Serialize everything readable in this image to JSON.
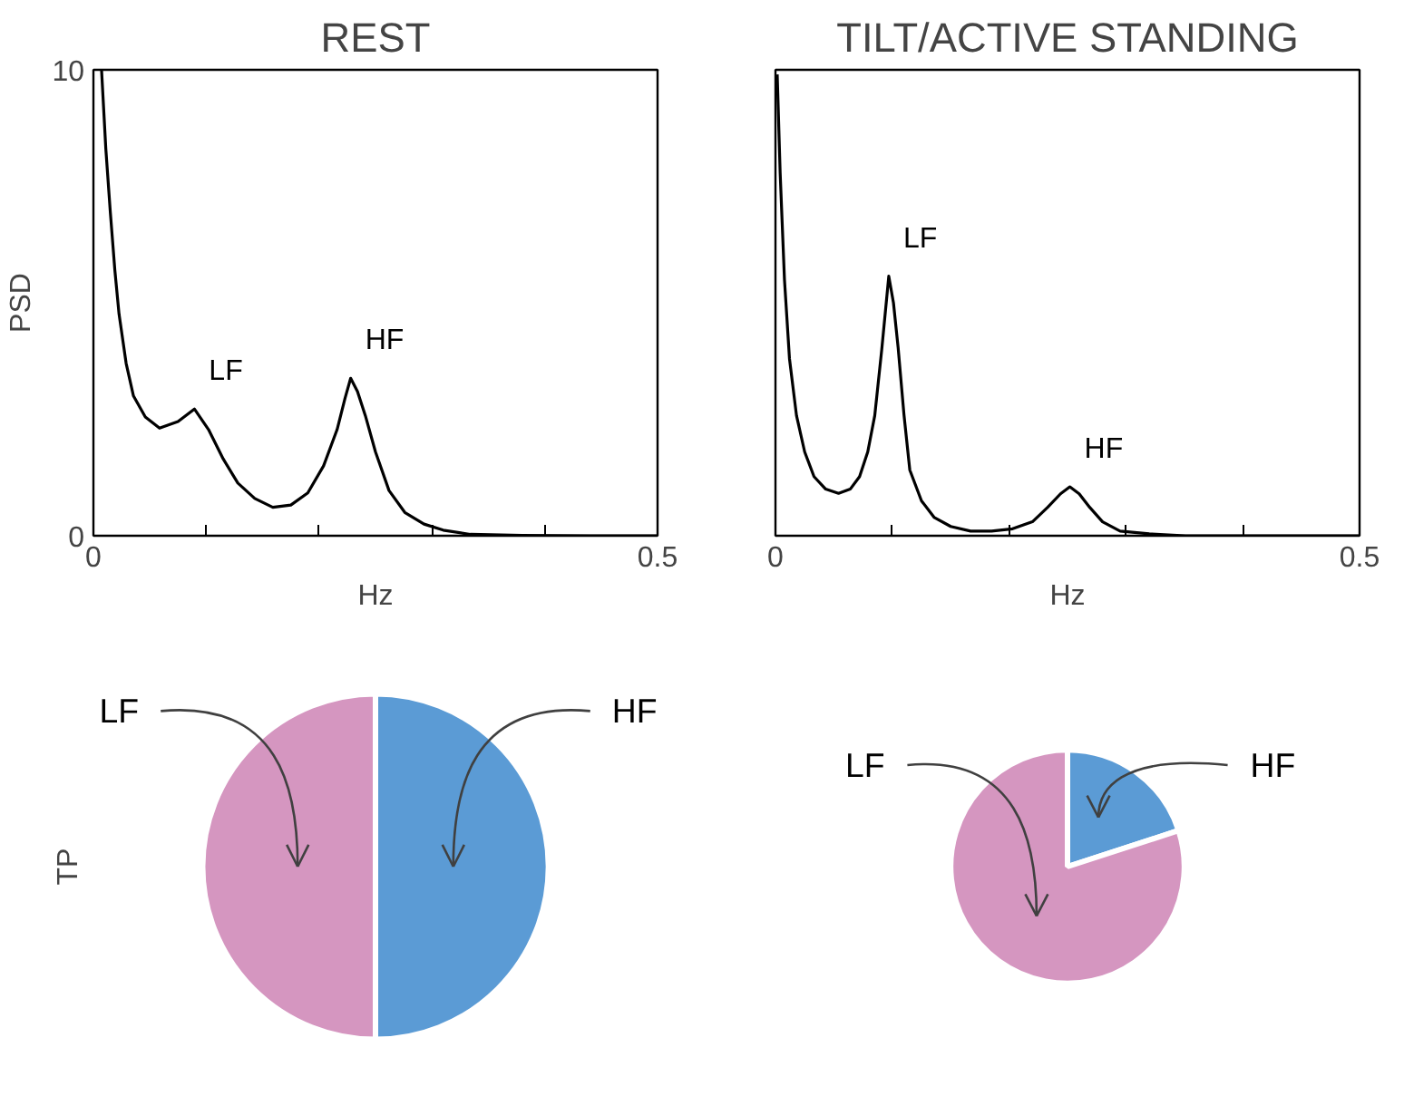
{
  "chart_data": [
    {
      "type": "line",
      "title": "REST",
      "xlabel": "Hz",
      "ylabel": "PSD",
      "xlim": [
        0,
        0.5
      ],
      "ylim": [
        0,
        10
      ],
      "xticks": [
        0,
        {
          "value": 0.1,
          "label": null
        },
        {
          "value": 0.2,
          "label": null
        },
        {
          "value": 0.3,
          "label": null
        },
        {
          "value": 0.4,
          "label": null
        },
        0.5
      ],
      "yticks": [
        0,
        10
      ],
      "grid": false,
      "series": [
        {
          "color": "#000000",
          "x": [
            0.0072,
            0.011,
            0.015,
            0.019,
            0.0227,
            0.029,
            0.0355,
            0.046,
            0.0586,
            0.075,
            0.0895,
            0.102,
            0.115,
            0.128,
            0.143,
            0.159,
            0.175,
            0.19,
            0.204,
            0.216,
            0.223,
            0.228,
            0.234,
            0.241,
            0.25,
            0.262,
            0.276,
            0.293,
            0.31,
            0.334,
            0.38,
            0.44,
            0.5
          ],
          "values": [
            10,
            8.3,
            6.94,
            5.7,
            4.76,
            3.7,
            3.0,
            2.55,
            2.31,
            2.45,
            2.72,
            2.28,
            1.65,
            1.13,
            0.8,
            0.61,
            0.66,
            0.92,
            1.5,
            2.28,
            2.95,
            3.38,
            3.1,
            2.58,
            1.8,
            0.97,
            0.5,
            0.25,
            0.12,
            0.03,
            0.01,
            0,
            0
          ]
        }
      ],
      "annotations": [
        {
          "text": "LF",
          "x": 0.0895,
          "y": 2.72
        },
        {
          "text": "HF",
          "x": 0.228,
          "y": 3.38
        }
      ]
    },
    {
      "type": "line",
      "title": "TILT/ACTIVE STANDING",
      "xlabel": "Hz",
      "xlim": [
        0,
        0.5
      ],
      "ylim": [
        0,
        10
      ],
      "xticks": [
        0,
        {
          "value": 0.1,
          "label": null
        },
        {
          "value": 0.2,
          "label": null
        },
        {
          "value": 0.3,
          "label": null
        },
        {
          "value": 0.4,
          "label": null
        },
        0.5
      ],
      "yticks": [
        0,
        10
      ],
      "tick_labels": "x",
      "grid": false,
      "series": [
        {
          "color": "#000000",
          "x": [
            0.0015,
            0.004,
            0.0077,
            0.012,
            0.018,
            0.025,
            0.033,
            0.043,
            0.054,
            0.064,
            0.072,
            0.079,
            0.085,
            0.091,
            0.097,
            0.101,
            0.105,
            0.11,
            0.115,
            0.125,
            0.136,
            0.15,
            0.167,
            0.185,
            0.203,
            0.22,
            0.233,
            0.244,
            0.252,
            0.26,
            0.269,
            0.28,
            0.295,
            0.32,
            0.351,
            0.42,
            0.5
          ],
          "values": [
            9.9,
            7.8,
            5.5,
            3.8,
            2.58,
            1.8,
            1.27,
            1.0,
            0.91,
            1.0,
            1.27,
            1.8,
            2.58,
            4.0,
            5.57,
            5.0,
            4.04,
            2.6,
            1.41,
            0.75,
            0.39,
            0.2,
            0.1,
            0.1,
            0.15,
            0.3,
            0.61,
            0.9,
            1.05,
            0.9,
            0.61,
            0.3,
            0.1,
            0.04,
            0,
            0,
            0
          ]
        }
      ],
      "annotations": [
        {
          "text": "LF",
          "x": 0.097,
          "y": 5.57
        },
        {
          "text": "HF",
          "x": 0.252,
          "y": 1.05
        }
      ]
    },
    {
      "type": "pie",
      "ylabel": "TP",
      "categories": [
        "HF",
        "LF"
      ],
      "values": [
        50,
        50
      ],
      "colors": [
        "#5b9bd5",
        "#d596c0"
      ]
    },
    {
      "type": "pie",
      "categories": [
        "HF",
        "LF"
      ],
      "values": [
        20,
        80
      ],
      "colors": [
        "#5b9bd5",
        "#d596c0"
      ]
    }
  ]
}
